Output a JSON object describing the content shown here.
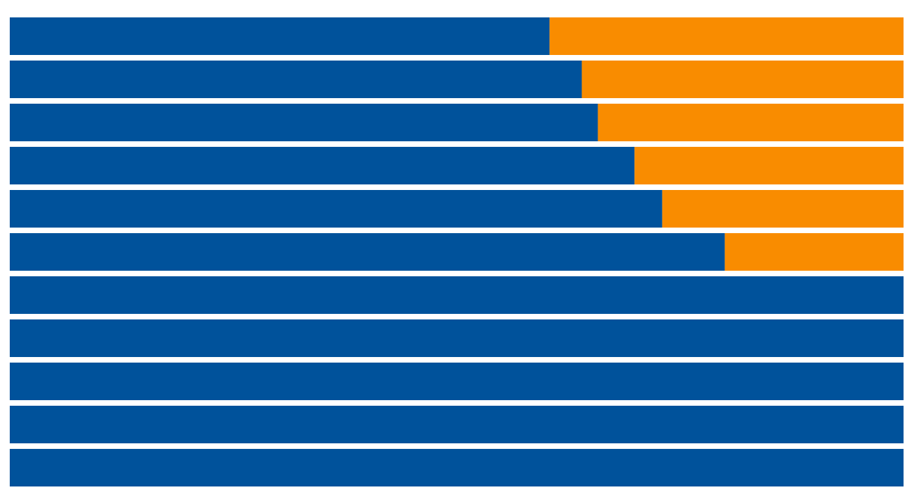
{
  "chart_data": {
    "type": "stacked-bar",
    "orientation": "horizontal",
    "categories": [
      null,
      null,
      null,
      null,
      null,
      null,
      null,
      null,
      null,
      null,
      null
    ],
    "series": [
      {
        "color": "#00529b",
        "values": [
          60.4,
          64,
          65.8,
          69.9,
          73,
          80,
          100,
          100,
          100,
          100,
          100
        ]
      },
      {
        "color": "#f98c00",
        "values": [
          39.6,
          36,
          34.2,
          30.1,
          27,
          20,
          0,
          0,
          0,
          0,
          0
        ]
      }
    ],
    "xlim": [
      0,
      100
    ]
  }
}
